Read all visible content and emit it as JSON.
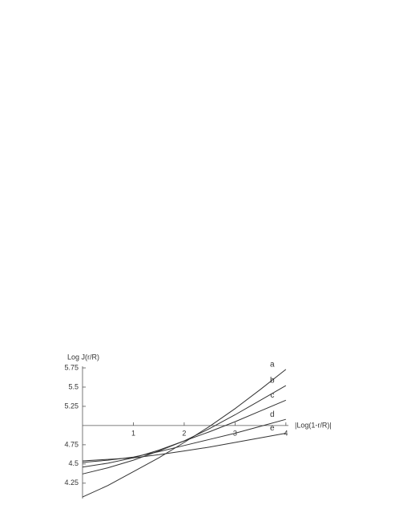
{
  "chart_data": {
    "type": "line",
    "y_label": "Log J(r/R)",
    "x_label": "|Log(1-r/R)|",
    "x": [
      0,
      0.5,
      1,
      1.5,
      2,
      2.5,
      3,
      3.5,
      4
    ],
    "series": [
      {
        "name": "a",
        "color": "#333333",
        "values": [
          4.07,
          4.22,
          4.4,
          4.58,
          4.78,
          4.99,
          5.22,
          5.47,
          5.73
        ]
      },
      {
        "name": "b",
        "color": "#333333",
        "values": [
          4.37,
          4.45,
          4.55,
          4.67,
          4.8,
          4.96,
          5.14,
          5.33,
          5.52
        ]
      },
      {
        "name": "c",
        "color": "#333333",
        "values": [
          4.46,
          4.51,
          4.58,
          4.68,
          4.8,
          4.92,
          5.05,
          5.19,
          5.33
        ]
      },
      {
        "name": "d",
        "color": "#333333",
        "values": [
          4.52,
          4.55,
          4.59,
          4.66,
          4.74,
          4.82,
          4.9,
          4.99,
          5.08
        ]
      },
      {
        "name": "e",
        "color": "#333333",
        "values": [
          4.54,
          4.56,
          4.58,
          4.62,
          4.67,
          4.72,
          4.78,
          4.84,
          4.9
        ]
      }
    ],
    "xlim": [
      0,
      4.05
    ],
    "ylim": [
      4.05,
      5.75
    ],
    "xticks": [
      1,
      2,
      3,
      4
    ],
    "yticks": [
      4.25,
      4.5,
      4.75,
      5.25,
      5.5,
      5.75
    ],
    "x_axis_crossing": 5,
    "grid": false
  }
}
